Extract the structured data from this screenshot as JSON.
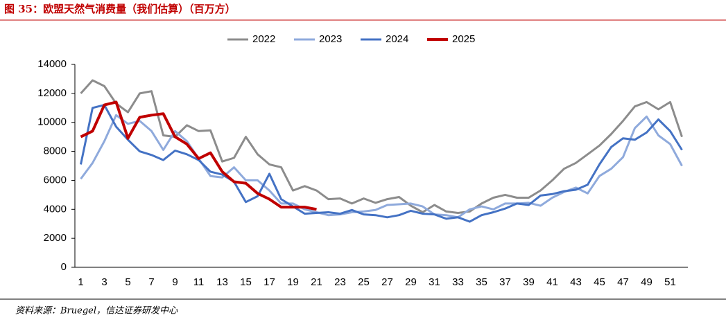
{
  "chart_data": {
    "type": "line",
    "title": "图 35：欧盟天然气消费量（我们估算）（百万方）",
    "source": "资料来源：Bruegel，信达证券研发中心",
    "categories": [
      "1",
      null,
      "3",
      null,
      "5",
      null,
      "7",
      null,
      "9",
      null,
      "11",
      null,
      "13",
      null,
      "15",
      null,
      "17",
      null,
      "19",
      null,
      "21",
      null,
      "23",
      null,
      "25",
      null,
      "27",
      null,
      "29",
      null,
      "31",
      null,
      "33",
      null,
      "35",
      null,
      "37",
      null,
      "39",
      null,
      "41",
      null,
      "43",
      null,
      "45",
      null,
      "47",
      null,
      "49",
      null,
      "51",
      null
    ],
    "ylim": [
      0,
      14000
    ],
    "yticks": [
      0,
      2000,
      4000,
      6000,
      8000,
      10000,
      12000,
      14000
    ],
    "grid": false,
    "legend": "top",
    "series": [
      {
        "name": "2022",
        "color": "#8c8c8c",
        "values": [
          12000,
          12900,
          12500,
          11300,
          10700,
          12000,
          12150,
          9100,
          9000,
          9800,
          9400,
          9450,
          7300,
          7550,
          9000,
          7800,
          7100,
          6900,
          5300,
          5600,
          5300,
          4700,
          4750,
          4400,
          4750,
          4450,
          4700,
          4850,
          4250,
          3800,
          4300,
          3850,
          3750,
          3850,
          4400,
          4800,
          5000,
          4800,
          4800,
          5300,
          6000,
          6800,
          7200,
          7800,
          8400,
          9200,
          10100,
          11100,
          11400,
          10900,
          11400,
          9000
        ]
      },
      {
        "name": "2023",
        "color": "#8faadc",
        "values": [
          6100,
          7200,
          8700,
          10500,
          9900,
          10100,
          9400,
          8100,
          9400,
          8700,
          7500,
          6300,
          6200,
          6900,
          6000,
          6000,
          5300,
          4400,
          4400,
          4000,
          3800,
          3600,
          3650,
          3800,
          3850,
          3950,
          4300,
          4350,
          4400,
          4200,
          3650,
          3600,
          3450,
          4000,
          4200,
          4000,
          4400,
          4400,
          4450,
          4250,
          4800,
          5200,
          5500,
          5100,
          6300,
          6800,
          7600,
          9600,
          10400,
          9100,
          8500,
          7000
        ]
      },
      {
        "name": "2024",
        "color": "#4472c4",
        "values": [
          7100,
          11000,
          11200,
          9700,
          8800,
          8000,
          7750,
          7400,
          8050,
          7800,
          7400,
          6600,
          6400,
          5900,
          4500,
          4900,
          6450,
          4700,
          4200,
          3700,
          3750,
          3800,
          3700,
          3950,
          3650,
          3600,
          3450,
          3600,
          3900,
          3700,
          3650,
          3350,
          3450,
          3150,
          3600,
          3800,
          4050,
          4400,
          4300,
          4950,
          5050,
          5250,
          5350,
          5700,
          7100,
          8300,
          8900,
          8800,
          9300,
          10200,
          9400,
          8100
        ]
      },
      {
        "name": "2025",
        "color": "#c00000",
        "values": [
          9000,
          9400,
          11200,
          11400,
          8900,
          10350,
          10500,
          10600,
          9000,
          8500,
          7500,
          7900,
          6600,
          5900,
          5800,
          5100,
          4700,
          4150,
          4150,
          4150,
          4000,
          null,
          null,
          null,
          null,
          null,
          null,
          null,
          null,
          null,
          null,
          null,
          null,
          null,
          null,
          null,
          null,
          null,
          null,
          null,
          null,
          null,
          null,
          null,
          null,
          null,
          null,
          null,
          null,
          null,
          null,
          null
        ]
      }
    ]
  }
}
